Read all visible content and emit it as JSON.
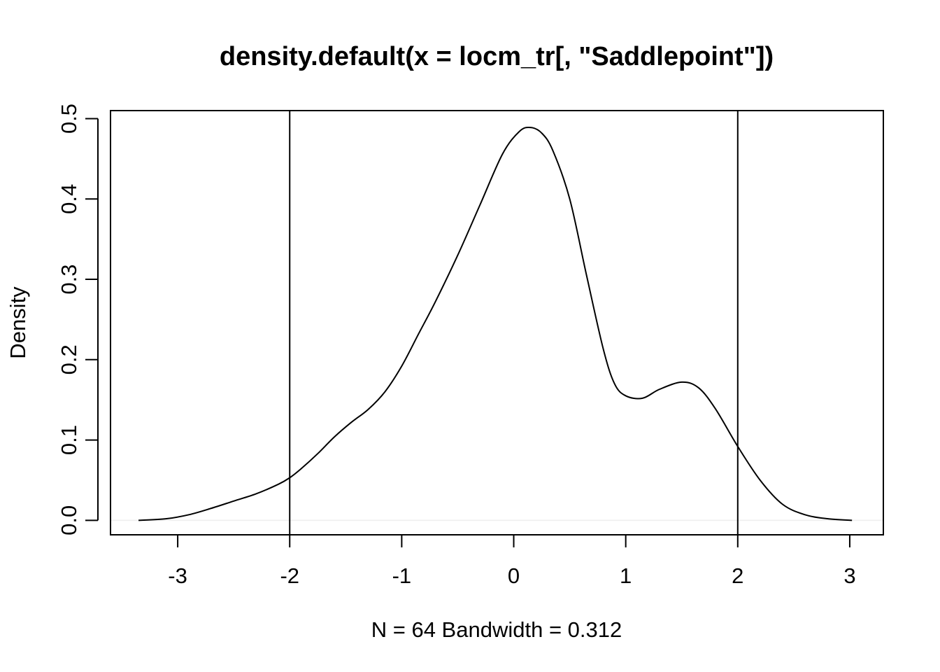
{
  "chart_data": {
    "type": "line",
    "title": "density.default(x = locm_tr[, \"Saddlepoint\"])",
    "xlabel": "N = 64   Bandwidth = 0.312",
    "ylabel": "Density",
    "xlim": [
      -3.6,
      3.3
    ],
    "ylim": [
      -0.018,
      0.51
    ],
    "x_ticks": [
      -3,
      -2,
      -1,
      0,
      1,
      2,
      3
    ],
    "x_tick_labels": [
      "-3",
      "-2",
      "-1",
      "0",
      "1",
      "2",
      "3"
    ],
    "y_ticks": [
      0.0,
      0.1,
      0.2,
      0.3,
      0.4,
      0.5
    ],
    "y_tick_labels": [
      "0.0",
      "0.1",
      "0.2",
      "0.3",
      "0.4",
      "0.5"
    ],
    "grid": false,
    "baseline_y": 0,
    "baseline_color": "#eeeeee",
    "vertical_lines": [
      -2,
      2
    ],
    "line_color": "#000000",
    "series": [
      {
        "x": [
          -3.35,
          -3.1,
          -2.9,
          -2.7,
          -2.5,
          -2.3,
          -2.1,
          -2.0,
          -1.9,
          -1.75,
          -1.6,
          -1.45,
          -1.3,
          -1.15,
          -1.0,
          -0.85,
          -0.7,
          -0.5,
          -0.3,
          -0.1,
          0.05,
          0.15,
          0.25,
          0.35,
          0.5,
          0.65,
          0.8,
          0.9,
          1.0,
          1.15,
          1.3,
          1.5,
          1.65,
          1.8,
          2.0,
          2.2,
          2.4,
          2.6,
          2.8,
          3.02
        ],
        "y": [
          0.0,
          0.002,
          0.007,
          0.015,
          0.024,
          0.033,
          0.045,
          0.053,
          0.064,
          0.083,
          0.104,
          0.122,
          0.138,
          0.16,
          0.192,
          0.232,
          0.272,
          0.33,
          0.393,
          0.456,
          0.484,
          0.489,
          0.482,
          0.46,
          0.4,
          0.305,
          0.213,
          0.17,
          0.155,
          0.152,
          0.163,
          0.172,
          0.165,
          0.139,
          0.092,
          0.05,
          0.02,
          0.007,
          0.002,
          0.0
        ]
      }
    ]
  }
}
